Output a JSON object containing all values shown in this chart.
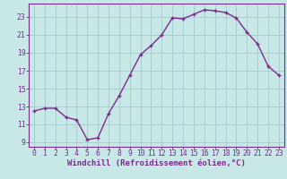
{
  "x": [
    0,
    1,
    2,
    3,
    4,
    5,
    6,
    7,
    8,
    9,
    10,
    11,
    12,
    13,
    14,
    15,
    16,
    17,
    18,
    19,
    20,
    21,
    22,
    23
  ],
  "y": [
    12.5,
    12.8,
    12.8,
    11.8,
    11.5,
    9.3,
    9.5,
    12.2,
    14.2,
    16.5,
    18.8,
    19.8,
    21.0,
    22.9,
    22.8,
    23.3,
    23.8,
    23.7,
    23.5,
    22.9,
    21.3,
    20.0,
    17.5,
    16.5
  ],
  "line_color": "#7b2d8b",
  "marker": "+",
  "marker_color": "#7b2d8b",
  "bg_color": "#c8e8e8",
  "grid_color": "#a8d0d0",
  "axis_color": "#7b2d8b",
  "tick_color": "#7b2d8b",
  "xlabel": "Windchill (Refroidissement éolien,°C)",
  "ylim": [
    8.5,
    24.5
  ],
  "xlim": [
    -0.5,
    23.5
  ],
  "yticks": [
    9,
    11,
    13,
    15,
    17,
    19,
    21,
    23
  ],
  "xticks": [
    0,
    1,
    2,
    3,
    4,
    5,
    6,
    7,
    8,
    9,
    10,
    11,
    12,
    13,
    14,
    15,
    16,
    17,
    18,
    19,
    20,
    21,
    22,
    23
  ],
  "xlabel_fontsize": 6.5,
  "tick_fontsize": 5.8,
  "linewidth": 1.0,
  "markersize": 3.5
}
